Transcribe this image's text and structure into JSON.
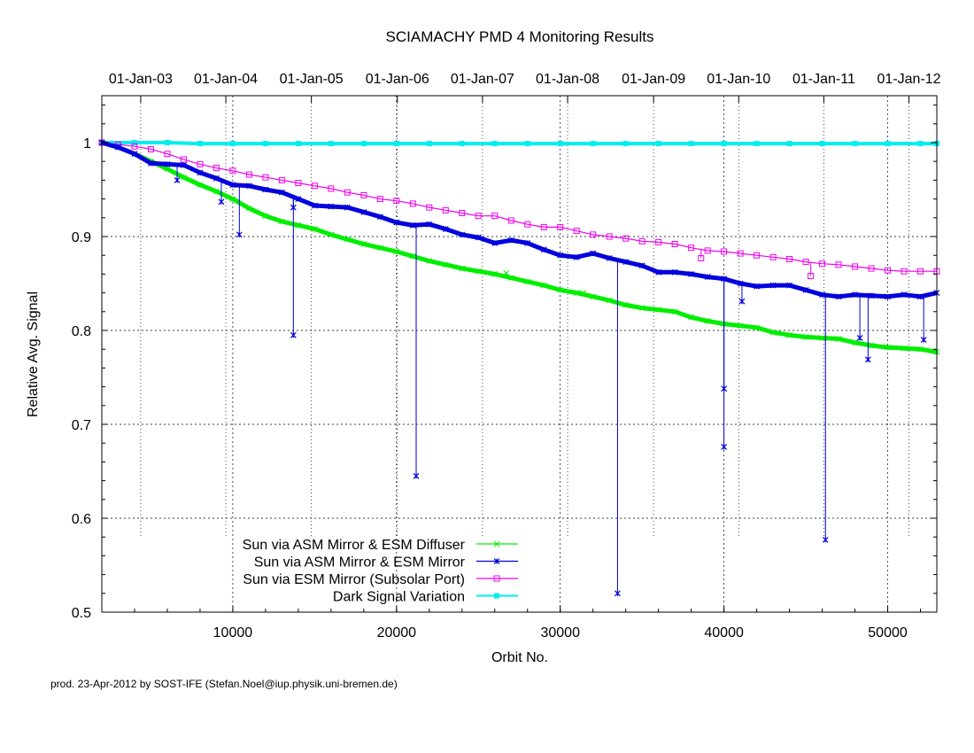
{
  "chart_data": {
    "type": "line",
    "title": "SCIAMACHY PMD 4 Monitoring Results",
    "xlabel": "Orbit No.",
    "ylabel": "Relative Avg. Signal",
    "xlim": [
      2000,
      53000
    ],
    "ylim": [
      0.5,
      1.05
    ],
    "x_ticks": [
      10000,
      20000,
      30000,
      40000,
      50000
    ],
    "x_tick_labels": [
      "10000",
      "20000",
      "30000",
      "40000",
      "50000"
    ],
    "y_ticks": [
      0.5,
      0.6,
      0.7,
      0.8,
      0.9,
      1.0
    ],
    "y_tick_labels": [
      "0.5",
      "0.6",
      "0.7",
      "0.8",
      "0.9",
      "1"
    ],
    "grid": true,
    "legend_position": "bottom-left",
    "top_axis": {
      "ticks": [
        {
          "label": "01-Jan-03",
          "orbit": 4375
        },
        {
          "label": "01-Jan-04",
          "orbit": 9575
        },
        {
          "label": "01-Jan-05",
          "orbit": 14800
        },
        {
          "label": "01-Jan-06",
          "orbit": 20050
        },
        {
          "label": "01-Jan-07",
          "orbit": 25250
        },
        {
          "label": "01-Jan-08",
          "orbit": 30450
        },
        {
          "label": "01-Jan-09",
          "orbit": 35700
        },
        {
          "label": "01-Jan-10",
          "orbit": 40900
        },
        {
          "label": "01-Jan-11",
          "orbit": 46100
        },
        {
          "label": "01-Jan-12",
          "orbit": 51300
        }
      ]
    },
    "series": [
      {
        "name": "Sun via ASM Mirror & ESM Diffuser",
        "color": "#00ee00",
        "marker": "x",
        "x": [
          2000,
          3000,
          4000,
          5000,
          6000,
          7000,
          8000,
          9000,
          10000,
          11000,
          12000,
          13000,
          14000,
          15000,
          16000,
          17000,
          18000,
          19000,
          20000,
          21000,
          22000,
          23000,
          24000,
          25000,
          26000,
          27000,
          28000,
          29000,
          30000,
          31000,
          32000,
          33000,
          34000,
          35000,
          36000,
          37000,
          38000,
          39000,
          40000,
          41000,
          42000,
          43000,
          44000,
          45000,
          46000,
          47000,
          48000,
          49000,
          50000,
          51000,
          52000,
          53000
        ],
        "y": [
          1.0,
          0.995,
          0.988,
          0.98,
          0.972,
          0.963,
          0.955,
          0.948,
          0.94,
          0.93,
          0.922,
          0.916,
          0.912,
          0.908,
          0.902,
          0.897,
          0.892,
          0.888,
          0.884,
          0.879,
          0.874,
          0.87,
          0.866,
          0.863,
          0.86,
          0.856,
          0.852,
          0.848,
          0.843,
          0.84,
          0.836,
          0.832,
          0.827,
          0.824,
          0.822,
          0.82,
          0.814,
          0.81,
          0.807,
          0.805,
          0.803,
          0.798,
          0.795,
          0.793,
          0.792,
          0.791,
          0.787,
          0.784,
          0.782,
          0.781,
          0.78,
          0.777
        ]
      },
      {
        "name": "Sun via ASM Mirror & ESM Mirror",
        "color": "#0000dd",
        "marker": "asterisk",
        "x": [
          2000,
          3000,
          4000,
          5000,
          6000,
          7000,
          8000,
          9000,
          10000,
          11000,
          12000,
          13000,
          14000,
          15000,
          16000,
          17000,
          18000,
          19000,
          20000,
          21000,
          22000,
          23000,
          24000,
          25000,
          26000,
          27000,
          28000,
          29000,
          30000,
          31000,
          32000,
          33000,
          34000,
          35000,
          36000,
          37000,
          38000,
          39000,
          40000,
          41000,
          42000,
          43000,
          44000,
          45000,
          46000,
          47000,
          48000,
          49000,
          50000,
          51000,
          52000,
          53000
        ],
        "y": [
          1.0,
          0.995,
          0.988,
          0.978,
          0.977,
          0.976,
          0.968,
          0.962,
          0.955,
          0.954,
          0.95,
          0.947,
          0.94,
          0.933,
          0.932,
          0.931,
          0.926,
          0.921,
          0.915,
          0.912,
          0.913,
          0.908,
          0.902,
          0.899,
          0.893,
          0.896,
          0.893,
          0.886,
          0.88,
          0.878,
          0.882,
          0.877,
          0.873,
          0.869,
          0.862,
          0.862,
          0.86,
          0.857,
          0.855,
          0.85,
          0.847,
          0.848,
          0.848,
          0.843,
          0.838,
          0.836,
          0.838,
          0.837,
          0.836,
          0.838,
          0.836,
          0.84
        ]
      },
      {
        "name": "Sun via ESM Mirror (Subsolar Port)",
        "color": "#ee00ee",
        "marker": "square",
        "x": [
          2000,
          3000,
          4000,
          5000,
          6000,
          7000,
          8000,
          9000,
          10000,
          11000,
          12000,
          13000,
          14000,
          15000,
          16000,
          17000,
          18000,
          19000,
          20000,
          21000,
          22000,
          23000,
          24000,
          25000,
          26000,
          27000,
          28000,
          29000,
          30000,
          31000,
          32000,
          33000,
          34000,
          35000,
          36000,
          37000,
          38000,
          39000,
          40000,
          41000,
          42000,
          43000,
          44000,
          45000,
          46000,
          47000,
          48000,
          49000,
          50000,
          51000,
          52000,
          53000
        ],
        "y": [
          1.0,
          0.998,
          0.996,
          0.993,
          0.988,
          0.982,
          0.977,
          0.973,
          0.97,
          0.966,
          0.963,
          0.96,
          0.957,
          0.954,
          0.951,
          0.947,
          0.944,
          0.94,
          0.938,
          0.935,
          0.931,
          0.928,
          0.925,
          0.922,
          0.922,
          0.917,
          0.913,
          0.91,
          0.91,
          0.906,
          0.902,
          0.9,
          0.898,
          0.895,
          0.894,
          0.892,
          0.888,
          0.885,
          0.884,
          0.882,
          0.88,
          0.878,
          0.876,
          0.873,
          0.871,
          0.87,
          0.868,
          0.866,
          0.864,
          0.863,
          0.863,
          0.863
        ]
      },
      {
        "name": "Dark Signal Variation",
        "color": "#00eeee",
        "marker": "filled-square",
        "x": [
          2000,
          4000,
          6000,
          8000,
          10000,
          12000,
          14000,
          16000,
          18000,
          20000,
          22000,
          24000,
          26000,
          28000,
          30000,
          32000,
          34000,
          36000,
          38000,
          40000,
          42000,
          44000,
          46000,
          48000,
          50000,
          52000,
          53000
        ],
        "y": [
          1.0,
          1.0,
          1.0,
          0.999,
          0.999,
          0.999,
          0.999,
          0.999,
          0.999,
          0.999,
          0.999,
          0.999,
          0.999,
          0.999,
          0.999,
          0.999,
          0.999,
          0.999,
          0.999,
          0.999,
          0.999,
          0.999,
          0.999,
          0.999,
          0.999,
          0.999,
          0.999
        ]
      }
    ],
    "outliers": [
      {
        "series": 1,
        "x": 6600,
        "y": 0.96
      },
      {
        "series": 1,
        "x": 9300,
        "y": 0.937
      },
      {
        "series": 1,
        "x": 10400,
        "y": 0.902
      },
      {
        "series": 1,
        "x": 13700,
        "y": 0.795
      },
      {
        "series": 1,
        "x": 13700,
        "y": 0.931
      },
      {
        "series": 1,
        "x": 21200,
        "y": 0.645
      },
      {
        "series": 1,
        "x": 33500,
        "y": 0.52
      },
      {
        "series": 1,
        "x": 40000,
        "y": 0.738
      },
      {
        "series": 1,
        "x": 40000,
        "y": 0.676
      },
      {
        "series": 1,
        "x": 41100,
        "y": 0.831
      },
      {
        "series": 1,
        "x": 46200,
        "y": 0.577
      },
      {
        "series": 1,
        "x": 48300,
        "y": 0.792
      },
      {
        "series": 1,
        "x": 48800,
        "y": 0.769
      },
      {
        "series": 1,
        "x": 52200,
        "y": 0.79
      },
      {
        "series": 2,
        "x": 38600,
        "y": 0.877
      },
      {
        "series": 2,
        "x": 45300,
        "y": 0.858
      },
      {
        "series": 0,
        "x": 26700,
        "y": 0.861
      },
      {
        "series": 0,
        "x": 31400,
        "y": 0.84
      }
    ]
  },
  "footer": "prod. 23-Apr-2012 by SOST-IFE (Stefan.Noel@iup.physik.uni-bremen.de)"
}
